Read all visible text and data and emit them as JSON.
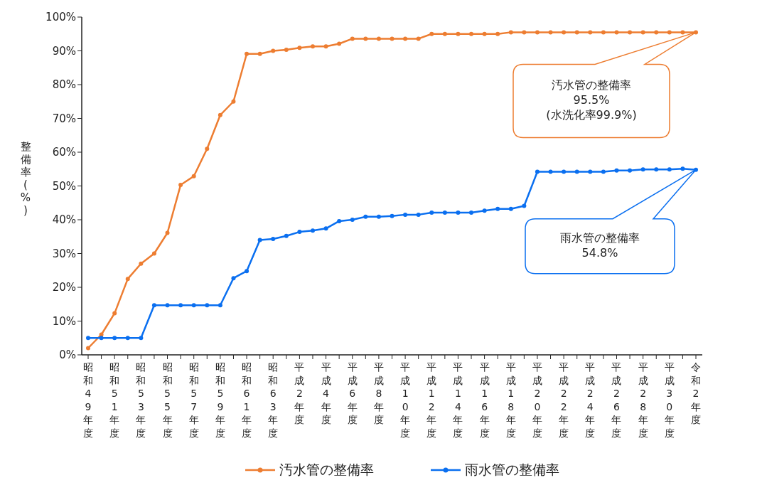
{
  "chart_data": {
    "type": "line",
    "ylabel": "整備率(%)",
    "categories": [
      "昭和49年度",
      null,
      "昭和51年度",
      null,
      "昭和53年度",
      null,
      "昭和55年度",
      null,
      "昭和57年度",
      null,
      "昭和59年度",
      null,
      "昭和61年度",
      null,
      "昭和63年度",
      null,
      "平成2年度",
      null,
      "平成4年度",
      null,
      "平成6年度",
      null,
      "平成8年度",
      null,
      "平成10年度",
      null,
      "平成12年度",
      null,
      "平成14年度",
      null,
      "平成16年度",
      null,
      "平成18年度",
      null,
      "平成20年度",
      null,
      "平成22年度",
      null,
      "平成24年度",
      null,
      "平成26年度",
      null,
      "平成28年度",
      null,
      "平成30年度",
      null,
      "令和2年度"
    ],
    "series": [
      {
        "name": "汚水管の整備率",
        "color": "#ed7d31",
        "values": [
          2,
          6,
          12.3,
          22.5,
          27,
          30,
          36.1,
          50.3,
          52.9,
          61,
          71,
          75,
          89.1,
          89.1,
          90,
          90.3,
          90.9,
          91.3,
          91.3,
          92.1,
          93.6,
          93.6,
          93.6,
          93.6,
          93.6,
          93.6,
          95,
          95,
          95,
          95,
          95,
          95,
          95.5,
          95.5,
          95.5,
          95.5,
          95.5,
          95.5,
          95.5,
          95.5,
          95.5,
          95.5,
          95.5,
          95.5,
          95.5,
          95.5,
          95.5
        ]
      },
      {
        "name": "雨水管の整備率",
        "color": "#0a6ff0",
        "values": [
          5,
          5,
          5,
          5,
          5,
          14.7,
          14.7,
          14.7,
          14.7,
          14.7,
          14.7,
          22.7,
          24.8,
          34,
          34.3,
          35.2,
          36.4,
          36.8,
          37.4,
          39.6,
          40,
          40.9,
          40.9,
          41.1,
          41.5,
          41.5,
          42.1,
          42.1,
          42.1,
          42.1,
          42.7,
          43.2,
          43.2,
          44.1,
          54.2,
          54.2,
          54.2,
          54.2,
          54.2,
          54.2,
          54.6,
          54.6,
          54.9,
          54.9,
          54.9,
          55.1,
          54.8
        ]
      }
    ],
    "ylim": [
      0,
      100
    ],
    "yticks": [
      {
        "value": 0,
        "label": "0%"
      },
      {
        "value": 10,
        "label": "10%"
      },
      {
        "value": 20,
        "label": "20%"
      },
      {
        "value": 30,
        "label": "30%"
      },
      {
        "value": 40,
        "label": "40%"
      },
      {
        "value": 50,
        "label": "50%"
      },
      {
        "value": 60,
        "label": "60%"
      },
      {
        "value": 70,
        "label": "70%"
      },
      {
        "value": 80,
        "label": "80%"
      },
      {
        "value": 90,
        "label": "90%"
      },
      {
        "value": 100,
        "label": "100%"
      }
    ],
    "annotations": [
      "汚水管の整備率\n95.5%\n(水洗化率99.9%)",
      "雨水管の整備率\n54.8%"
    ],
    "grid": false,
    "legend": "bottom",
    "marker": "circle",
    "line_style": "solid"
  }
}
